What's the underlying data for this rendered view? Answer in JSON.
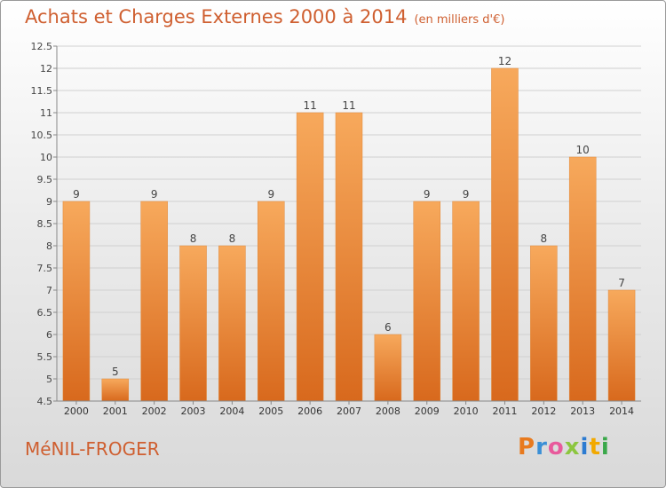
{
  "header": {
    "title": "Achats et Charges Externes 2000 à 2014",
    "unit": "(en milliers d'€)"
  },
  "footer": {
    "commune": "MéNIL-FROGER",
    "logo_letters": [
      {
        "char": "P",
        "color": "#e87a1e"
      },
      {
        "char": "r",
        "color": "#3a8fd6"
      },
      {
        "char": "o",
        "color": "#e85a9c"
      },
      {
        "char": "x",
        "color": "#8cc63f"
      },
      {
        "char": "i",
        "color": "#2c7bd1"
      },
      {
        "char": "t",
        "color": "#f2a900"
      },
      {
        "char": "i",
        "color": "#3aa84a"
      }
    ]
  },
  "chart_data": {
    "type": "bar",
    "categories": [
      "2000",
      "2001",
      "2002",
      "2003",
      "2004",
      "2005",
      "2006",
      "2007",
      "2008",
      "2009",
      "2010",
      "2011",
      "2012",
      "2013",
      "2014"
    ],
    "values": [
      9,
      5,
      9,
      8,
      8,
      9,
      11,
      11,
      6,
      9,
      9,
      12,
      8,
      10,
      7
    ],
    "value_labels": [
      "9",
      "5",
      "9",
      "8",
      "8",
      "9",
      "11",
      "11",
      "6",
      "9",
      "9",
      "12",
      "8",
      "10",
      "7"
    ],
    "ylim": [
      4.5,
      12.5
    ],
    "yticks": [
      "4.5",
      "5",
      "5.5",
      "6",
      "6.5",
      "7",
      "7.5",
      "8",
      "8.5",
      "9",
      "9.5",
      "10",
      "10.5",
      "11",
      "11.5",
      "12",
      "12.5"
    ],
    "grid": true,
    "bar_color_top": "#f7a95c",
    "bar_color_bottom": "#d8691d",
    "title_color": "#cf5f30"
  }
}
